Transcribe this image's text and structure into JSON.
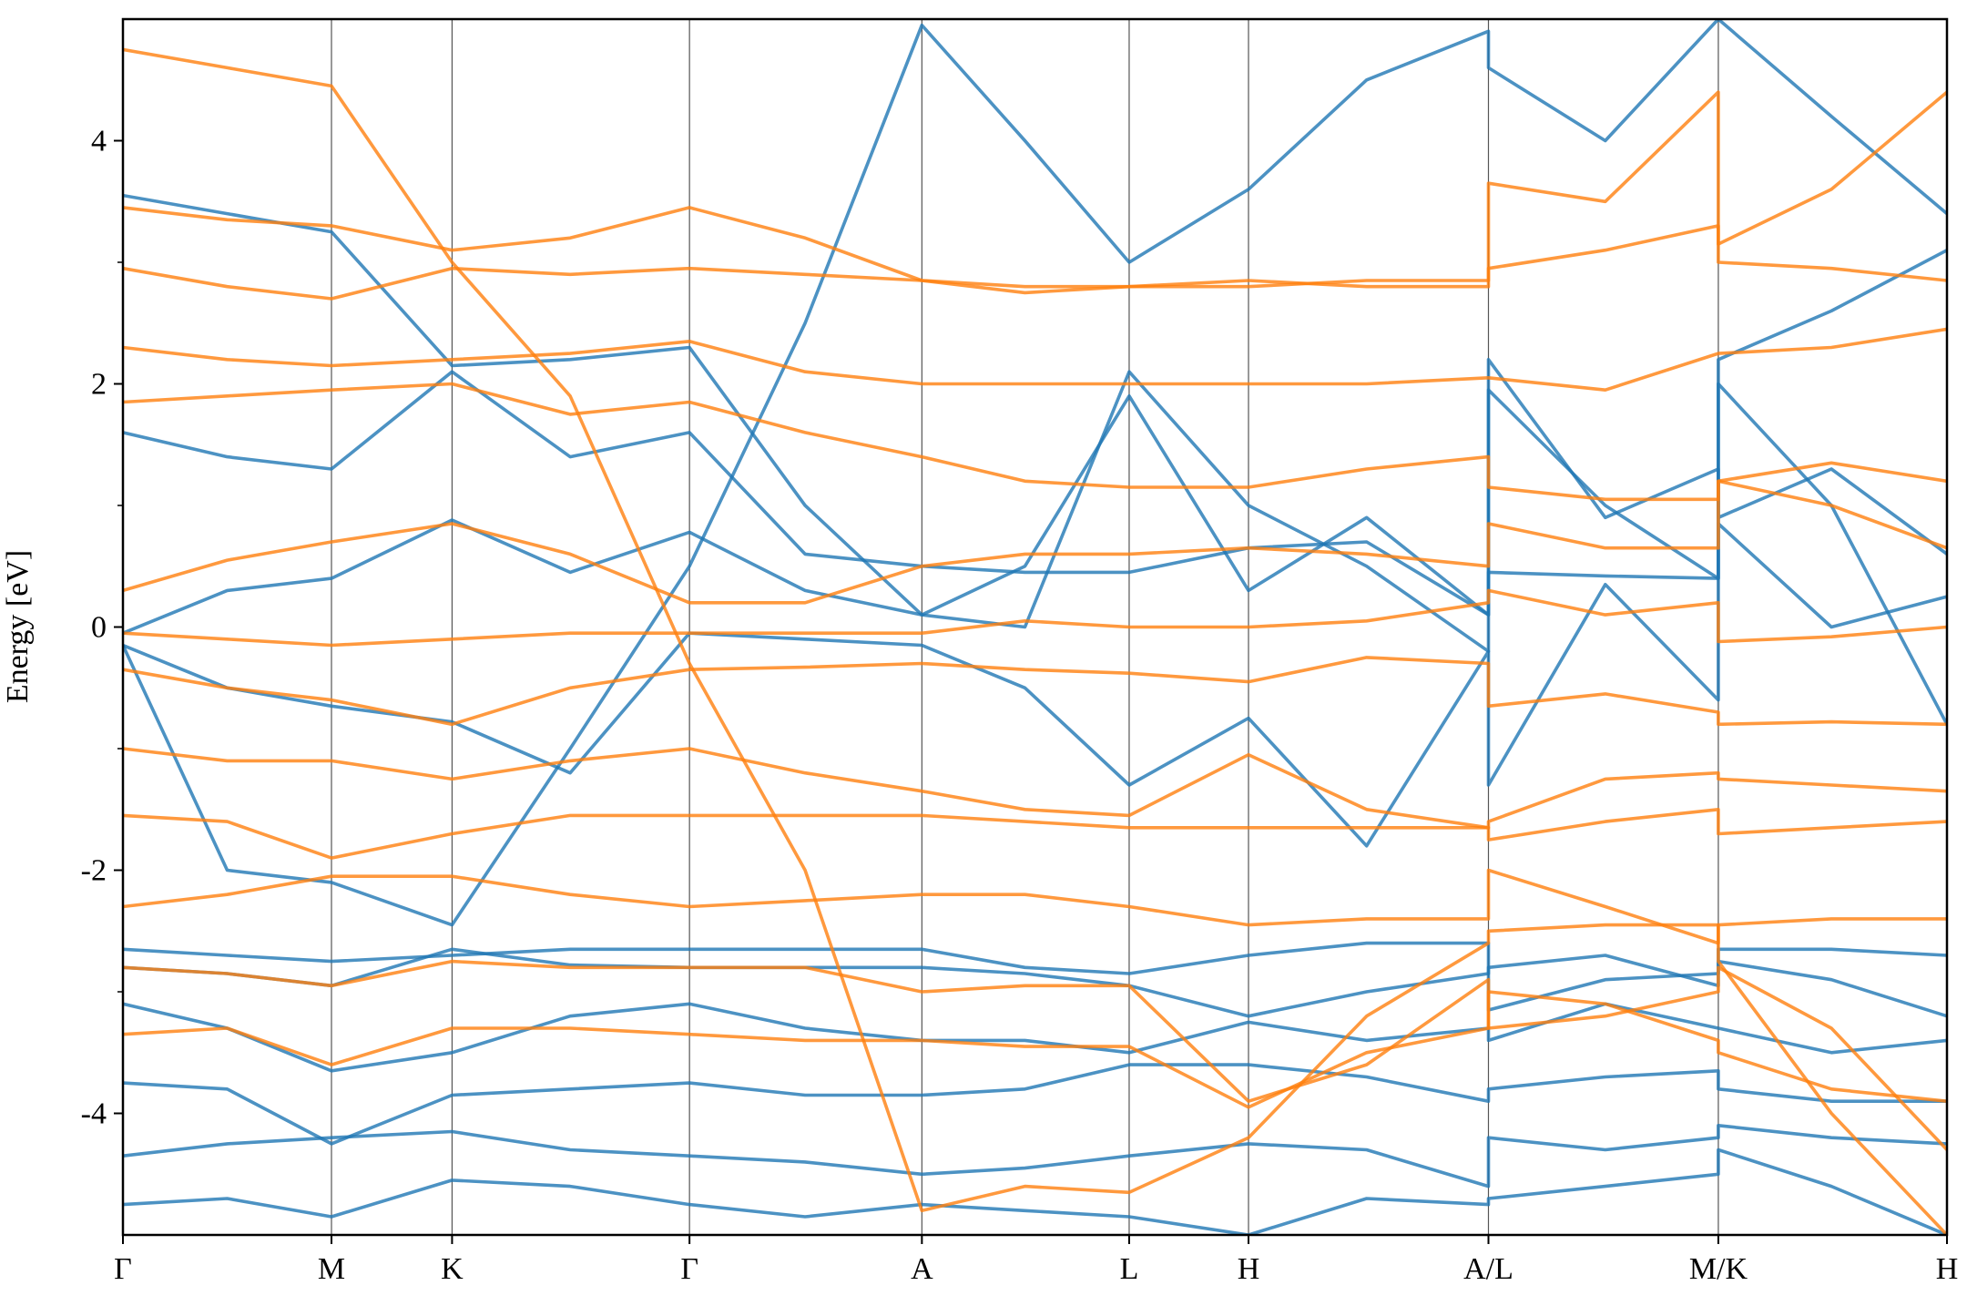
{
  "chart_data": {
    "type": "line",
    "ylabel": "Energy [eV]",
    "x": [
      0,
      0.083,
      0.166,
      0.262,
      0.356,
      0.451,
      0.543,
      0.636,
      0.718,
      0.801,
      0.896,
      0.99,
      1.087,
      1.087,
      1.18,
      1.27,
      1.27,
      1.36,
      1.452
    ],
    "xlim": [
      0,
      1.452
    ],
    "xticks": [
      {
        "value": 0,
        "label": "Γ"
      },
      {
        "value": 0.166,
        "label": "M"
      },
      {
        "value": 0.262,
        "label": "K"
      },
      {
        "value": 0.451,
        "label": "Γ"
      },
      {
        "value": 0.636,
        "label": "A"
      },
      {
        "value": 0.801,
        "label": "L"
      },
      {
        "value": 0.896,
        "label": "H"
      },
      {
        "value": 1.087,
        "label": "A/L"
      },
      {
        "value": 1.27,
        "label": "M/K"
      },
      {
        "value": 1.452,
        "label": "H"
      }
    ],
    "ylim": [
      -5,
      5
    ],
    "yticks": [
      -4,
      -2,
      0,
      2,
      4
    ],
    "yminorticks": [
      -3,
      -1,
      1,
      3
    ],
    "series": [
      {
        "color": "#1f77b4",
        "values": [
          -0.05,
          0.3,
          0.4,
          0.88,
          0.45,
          0.78,
          0.3,
          0.1,
          0.5,
          1.9,
          0.3,
          0.9,
          0.1,
          2.2,
          0.9,
          1.3,
          0.9,
          1.3,
          0.6
        ]
      },
      {
        "color": "#1f77b4",
        "values": [
          -0.15,
          -0.5,
          -0.65,
          -0.78,
          -1.2,
          -0.05,
          -0.1,
          -0.15,
          -0.5,
          -1.3,
          -0.75,
          -1.8,
          -0.2,
          -1.3,
          0.35,
          -0.6,
          2.0,
          1.0,
          -0.8
        ]
      },
      {
        "color": "#1f77b4",
        "values": [
          1.6,
          1.4,
          1.3,
          2.1,
          1.4,
          1.6,
          0.6,
          0.5,
          0.45,
          0.45,
          0.65,
          0.7,
          0.1,
          1.95,
          1.0,
          0.4,
          0.85,
          0.0,
          0.25
        ]
      },
      {
        "color": "#1f77b4",
        "values": [
          3.55,
          3.4,
          3.25,
          2.15,
          2.2,
          2.3,
          1.0,
          0.1,
          0.0,
          2.1,
          1.0,
          0.5,
          -0.2,
          0.45,
          0.42,
          0.4,
          2.2,
          2.6,
          3.1
        ]
      },
      {
        "color": "#1f77b4",
        "values": [
          -2.65,
          -2.7,
          -2.75,
          -2.7,
          -2.65,
          -2.65,
          -2.65,
          -2.65,
          -2.8,
          -2.85,
          -2.7,
          -2.6,
          -2.6,
          -3.15,
          -2.9,
          -2.85,
          -2.65,
          -2.65,
          -2.7
        ]
      },
      {
        "color": "#1f77b4",
        "values": [
          -2.8,
          -2.85,
          -2.95,
          -2.65,
          -2.78,
          -2.8,
          -2.8,
          -2.8,
          -2.85,
          -2.95,
          -3.2,
          -3.0,
          -2.85,
          -2.8,
          -2.7,
          -2.95,
          -2.75,
          -2.9,
          -3.2
        ]
      },
      {
        "color": "#1f77b4",
        "values": [
          -3.1,
          -3.3,
          -3.65,
          -3.5,
          -3.2,
          -3.1,
          -3.3,
          -3.4,
          -3.4,
          -3.5,
          -3.25,
          -3.4,
          -3.3,
          -3.4,
          -3.1,
          -3.3,
          -3.3,
          -3.5,
          -3.4
        ]
      },
      {
        "color": "#1f77b4",
        "values": [
          -3.75,
          -3.8,
          -4.25,
          -3.85,
          -3.8,
          -3.75,
          -3.85,
          -3.85,
          -3.8,
          -3.6,
          -3.6,
          -3.7,
          -3.9,
          -3.8,
          -3.7,
          -3.65,
          -3.8,
          -3.9,
          -3.9
        ]
      },
      {
        "color": "#1f77b4",
        "values": [
          -4.35,
          -4.25,
          -4.2,
          -4.15,
          -4.3,
          -4.35,
          -4.4,
          -4.5,
          -4.45,
          -4.35,
          -4.25,
          -4.3,
          -4.6,
          -4.2,
          -4.3,
          -4.2,
          -4.1,
          -4.2,
          -4.25
        ]
      },
      {
        "color": "#1f77b4",
        "values": [
          -4.75,
          -4.7,
          -4.85,
          -4.55,
          -4.6,
          -4.75,
          -4.85,
          -4.75,
          -4.8,
          -4.85,
          -5.0,
          -4.7,
          -4.75,
          -4.7,
          -4.6,
          -4.5,
          -4.3,
          -4.6,
          -5.0
        ]
      },
      {
        "color": "#1f77b4",
        "values": [
          -0.15,
          -2.0,
          -2.1,
          -2.45,
          -1.0,
          0.5,
          2.5,
          4.95,
          4.0,
          3.0,
          3.6,
          4.5,
          4.9,
          4.6,
          4.0,
          5.0,
          5.0,
          4.2,
          3.4
        ]
      },
      {
        "color": "#ff7f0e",
        "values": [
          0.3,
          0.55,
          0.7,
          0.85,
          0.6,
          0.2,
          0.2,
          0.5,
          0.6,
          0.6,
          0.65,
          0.6,
          0.5,
          0.85,
          0.65,
          0.65,
          1.2,
          1.0,
          0.65
        ]
      },
      {
        "color": "#ff7f0e",
        "values": [
          -0.05,
          -0.1,
          -0.15,
          -0.1,
          -0.05,
          -0.05,
          -0.05,
          -0.05,
          0.05,
          0.0,
          0.0,
          0.05,
          0.2,
          0.3,
          0.1,
          0.2,
          -0.12,
          -0.08,
          0.0
        ]
      },
      {
        "color": "#ff7f0e",
        "values": [
          -0.35,
          -0.5,
          -0.6,
          -0.8,
          -0.5,
          -0.35,
          -0.33,
          -0.3,
          -0.35,
          -0.38,
          -0.45,
          -0.25,
          -0.3,
          -0.65,
          -0.55,
          -0.7,
          -0.8,
          -0.78,
          -0.8
        ]
      },
      {
        "color": "#ff7f0e",
        "values": [
          -1.0,
          -1.1,
          -1.1,
          -1.25,
          -1.1,
          -1.0,
          -1.2,
          -1.35,
          -1.5,
          -1.55,
          -1.05,
          -1.5,
          -1.65,
          -1.6,
          -1.25,
          -1.2,
          -1.25,
          -1.3,
          -1.35
        ]
      },
      {
        "color": "#ff7f0e",
        "values": [
          -1.55,
          -1.6,
          -1.9,
          -1.7,
          -1.55,
          -1.55,
          -1.55,
          -1.55,
          -1.6,
          -1.65,
          -1.65,
          -1.65,
          -1.65,
          -1.75,
          -1.6,
          -1.5,
          -1.7,
          -1.65,
          -1.6
        ]
      },
      {
        "color": "#ff7f0e",
        "values": [
          -2.3,
          -2.2,
          -2.05,
          -2.05,
          -2.2,
          -2.3,
          -2.25,
          -2.2,
          -2.2,
          -2.3,
          -2.45,
          -2.4,
          -2.4,
          -2.0,
          -2.3,
          -2.6,
          -2.45,
          -2.4,
          -2.4
        ]
      },
      {
        "color": "#ff7f0e",
        "values": [
          -2.8,
          -2.85,
          -2.95,
          -2.75,
          -2.8,
          -2.8,
          -2.8,
          -3.0,
          -2.95,
          -2.95,
          -3.9,
          -3.6,
          -2.9,
          -3.3,
          -3.2,
          -3.0,
          -2.8,
          -3.3,
          -4.3
        ]
      },
      {
        "color": "#ff7f0e",
        "values": [
          -3.35,
          -3.3,
          -3.6,
          -3.3,
          -3.3,
          -3.35,
          -3.4,
          -3.4,
          -3.45,
          -3.45,
          -3.95,
          -3.5,
          -3.3,
          -3.0,
          -3.1,
          -3.4,
          -3.5,
          -3.8,
          -3.9
        ]
      },
      {
        "color": "#ff7f0e",
        "values": [
          2.3,
          2.2,
          2.15,
          2.2,
          2.25,
          2.35,
          2.1,
          2.0,
          2.0,
          2.0,
          2.0,
          2.0,
          2.05,
          2.05,
          1.95,
          2.25,
          2.25,
          2.3,
          2.45
        ]
      },
      {
        "color": "#ff7f0e",
        "values": [
          2.95,
          2.8,
          2.7,
          2.95,
          2.9,
          2.95,
          2.9,
          2.85,
          2.75,
          2.8,
          2.8,
          2.85,
          2.85,
          2.95,
          3.1,
          3.3,
          3.0,
          2.95,
          2.85
        ]
      },
      {
        "color": "#ff7f0e",
        "values": [
          3.45,
          3.35,
          3.3,
          3.1,
          3.2,
          3.45,
          3.2,
          2.85,
          2.8,
          2.8,
          2.85,
          2.8,
          2.8,
          3.65,
          3.5,
          4.4,
          3.15,
          3.6,
          4.4
        ]
      },
      {
        "color": "#ff7f0e",
        "values": [
          1.85,
          1.9,
          1.95,
          2.0,
          1.75,
          1.85,
          1.6,
          1.4,
          1.2,
          1.15,
          1.15,
          1.3,
          1.4,
          1.15,
          1.05,
          1.05,
          1.2,
          1.35,
          1.2
        ]
      },
      {
        "color": "#ff7f0e",
        "values": [
          4.75,
          4.6,
          4.45,
          3.0,
          1.9,
          -0.3,
          -2.0,
          -4.8,
          -4.6,
          -4.65,
          -4.2,
          -3.2,
          -2.6,
          -2.5,
          -2.45,
          -2.45,
          -2.75,
          -4.0,
          -5.0
        ]
      }
    ]
  }
}
